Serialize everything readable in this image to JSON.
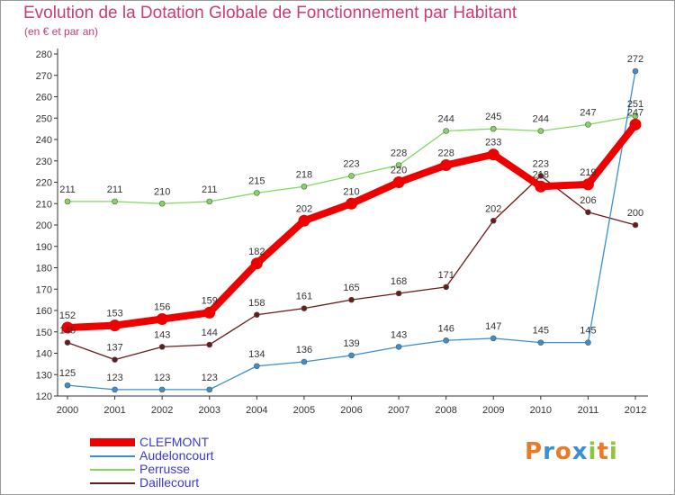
{
  "chart_data": {
    "type": "line",
    "title": "Evolution de la Dotation Globale de Fonctionnement par Habitant",
    "subtitle": "(en € et par an)",
    "xlabel": "",
    "ylabel": "",
    "x": [
      "2000",
      "2001",
      "2002",
      "2003",
      "2004",
      "2005",
      "2006",
      "2007",
      "2008",
      "2009",
      "2010",
      "2011",
      "2012"
    ],
    "y_ticks": [
      "120",
      "130",
      "140",
      "150",
      "160",
      "170",
      "180",
      "190",
      "200",
      "210",
      "220",
      "230",
      "240",
      "250",
      "260",
      "270",
      "280"
    ],
    "ylim": [
      120,
      280
    ],
    "grid": false,
    "legend_position": "bottom-left",
    "series": [
      {
        "name": "CLEFMONT",
        "color": "#ee0000",
        "values": [
          152,
          153,
          156,
          159,
          182,
          202,
          210,
          220,
          228,
          233,
          218,
          219,
          247
        ]
      },
      {
        "name": "Audeloncourt",
        "color": "#3a8fd0",
        "values": [
          125,
          123,
          123,
          123,
          134,
          136,
          139,
          143,
          146,
          147,
          145,
          145,
          272
        ]
      },
      {
        "name": "Perrusse",
        "color": "#80d860",
        "values": [
          211,
          211,
          210,
          211,
          215,
          218,
          223,
          228,
          244,
          245,
          244,
          247,
          251
        ]
      },
      {
        "name": "Daillecourt",
        "color": "#6a1a1a",
        "values": [
          145,
          137,
          143,
          144,
          158,
          161,
          165,
          168,
          171,
          202,
          223,
          206,
          200
        ]
      }
    ]
  },
  "logo": {
    "text": "Proxiti",
    "letters": [
      {
        "ch": "P",
        "color": "#e87a28"
      },
      {
        "ch": "r",
        "color": "#3b8fd6"
      },
      {
        "ch": "o",
        "color": "#e87a28"
      },
      {
        "ch": "x",
        "color": "#3b8fd6"
      },
      {
        "ch": "i",
        "color": "#8cc63f"
      },
      {
        "ch": "t",
        "color": "#e87a28"
      },
      {
        "ch": "i",
        "color": "#8cc63f"
      }
    ]
  }
}
